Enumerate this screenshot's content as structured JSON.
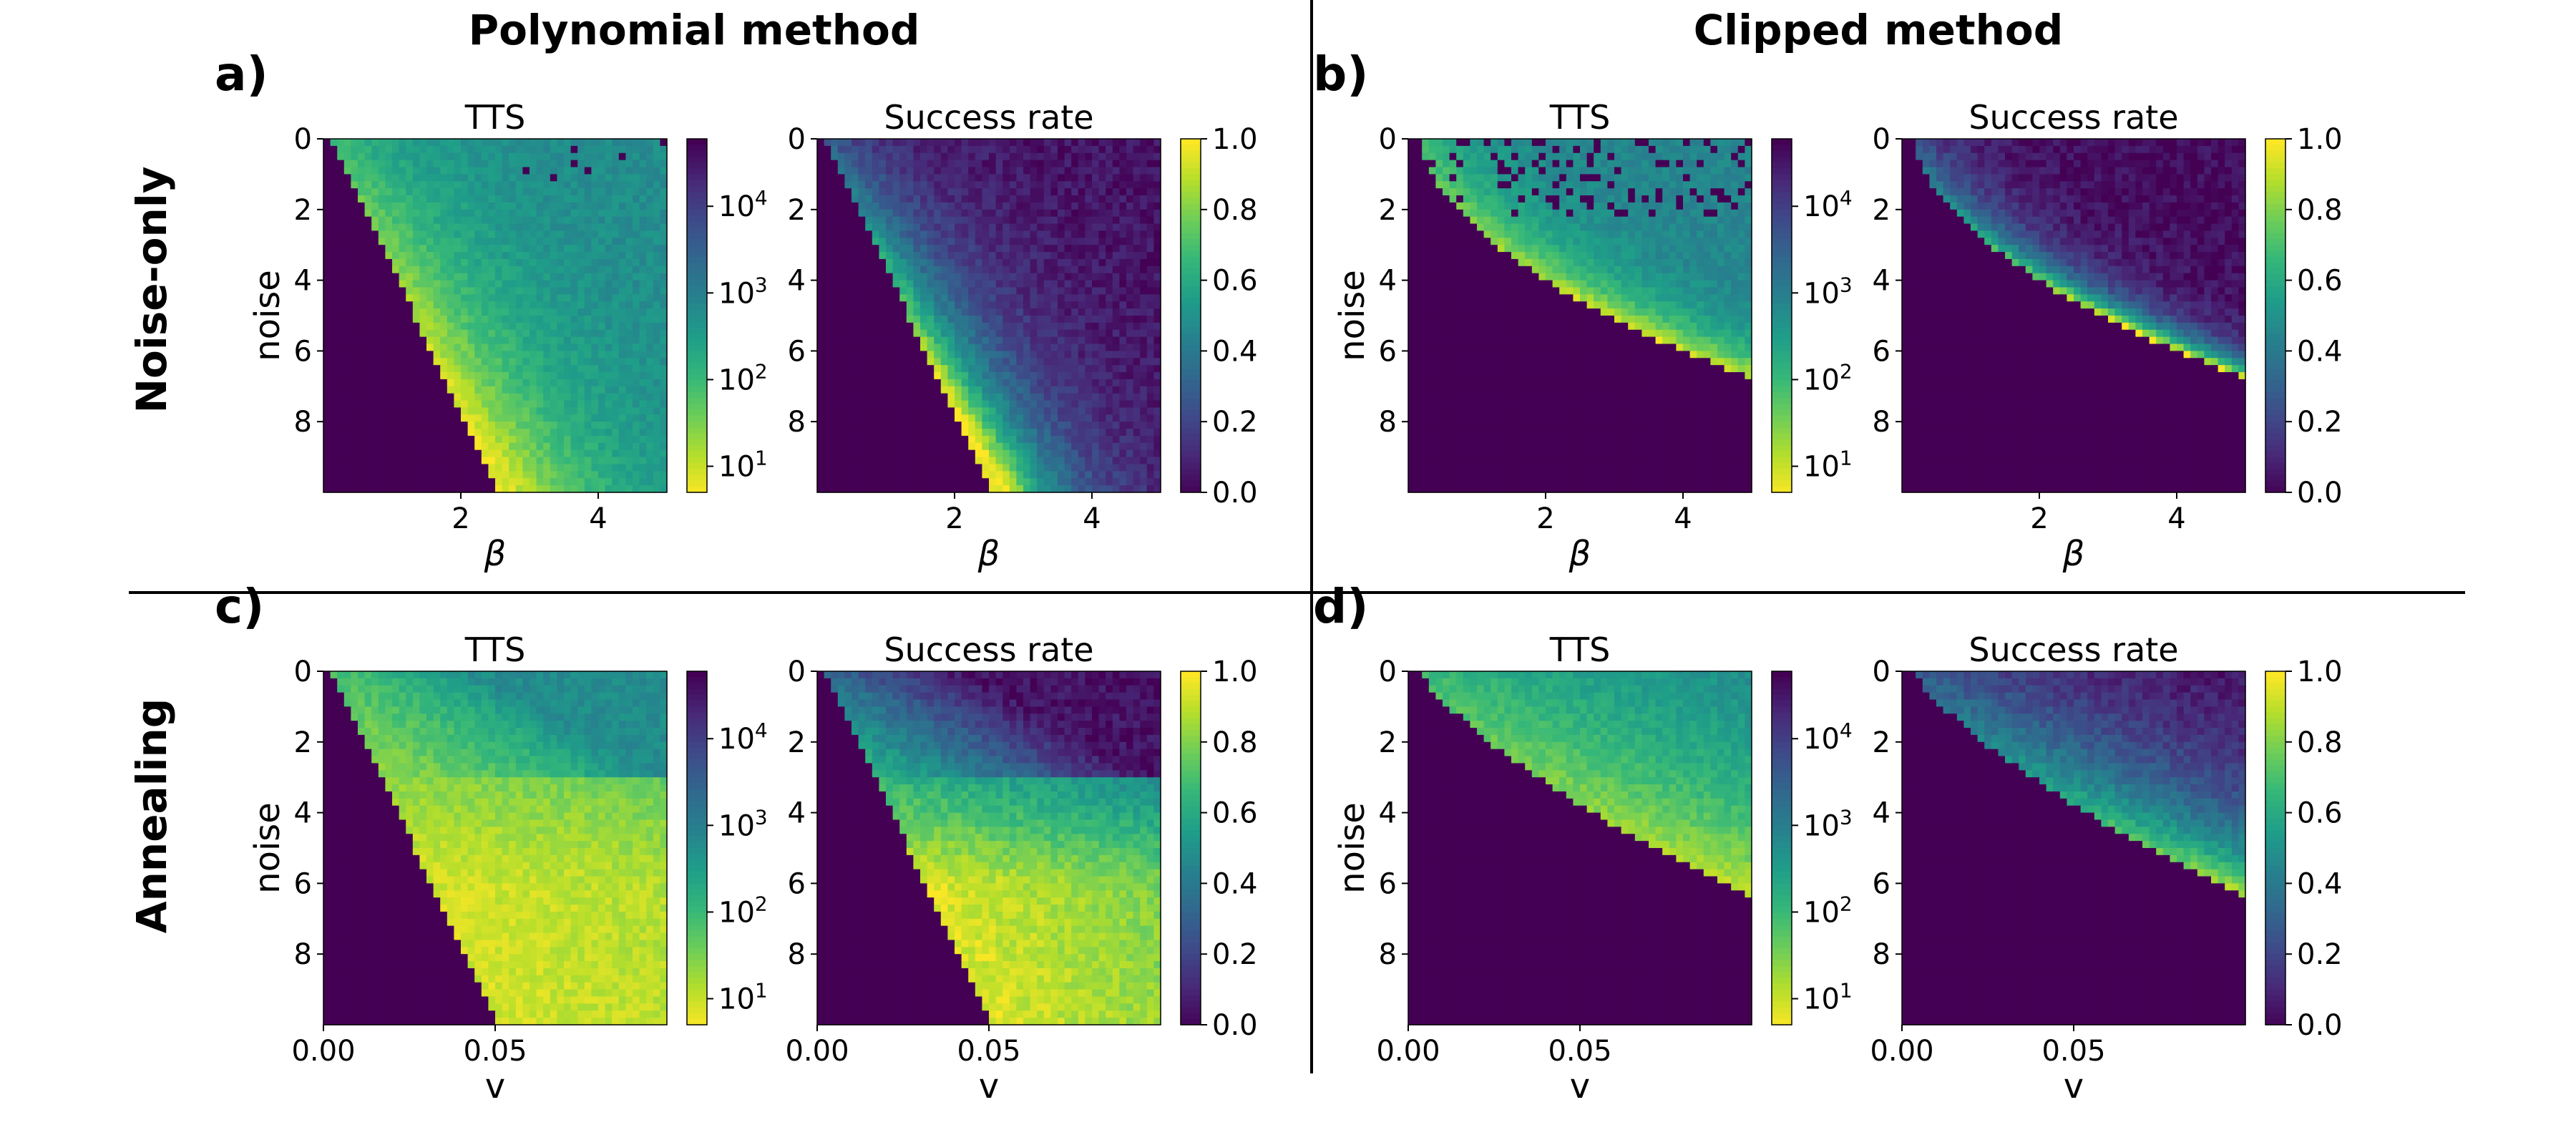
{
  "column_titles": [
    "Polynomial method",
    "Clipped method"
  ],
  "row_titles": [
    "Noise-only",
    "Annealing"
  ],
  "chart_data": [
    {
      "label": "a)",
      "type": "heatmap",
      "method": "polynomial",
      "regime": "noise-only",
      "xlabel": "β",
      "ylabel": "noise",
      "xlim": [
        0,
        5
      ],
      "ylim": [
        0,
        10
      ],
      "xticks": [
        "2",
        "4"
      ],
      "xtick_values": [
        2,
        4
      ],
      "yticks": [
        "0",
        "2",
        "4",
        "6",
        "8"
      ],
      "ytick_values": [
        0,
        2,
        4,
        6,
        8
      ],
      "panels": [
        {
          "title": "TTS",
          "metric": "tts",
          "colormap": "viridis_r",
          "scale": "log",
          "colorbar_ticks": [
            "10^4",
            "10^3",
            "10^2",
            "10^1"
          ],
          "colorbar_values": [
            10000,
            1000,
            100,
            10
          ],
          "crange": [
            5,
            60000
          ]
        },
        {
          "title": "Success rate",
          "metric": "success",
          "colormap": "viridis",
          "scale": "linear",
          "colorbar_ticks": [
            "1.0",
            "0.8",
            "0.6",
            "0.4",
            "0.2",
            "0.0"
          ],
          "colorbar_values": [
            1.0,
            0.8,
            0.6,
            0.4,
            0.2,
            0.0
          ],
          "crange": [
            0,
            1
          ]
        }
      ]
    },
    {
      "label": "b)",
      "type": "heatmap",
      "method": "clipped",
      "regime": "noise-only",
      "xlabel": "β",
      "ylabel": "noise",
      "xlim": [
        0,
        5
      ],
      "ylim": [
        0,
        10
      ],
      "xticks": [
        "2",
        "4"
      ],
      "xtick_values": [
        2,
        4
      ],
      "yticks": [
        "0",
        "2",
        "4",
        "6",
        "8"
      ],
      "ytick_values": [
        0,
        2,
        4,
        6,
        8
      ],
      "panels": [
        {
          "title": "TTS",
          "metric": "tts",
          "colormap": "viridis_r",
          "scale": "log",
          "colorbar_ticks": [
            "10^4",
            "10^3",
            "10^2",
            "10^1"
          ],
          "colorbar_values": [
            10000,
            1000,
            100,
            10
          ],
          "crange": [
            5,
            60000
          ]
        },
        {
          "title": "Success rate",
          "metric": "success",
          "colormap": "viridis",
          "scale": "linear",
          "colorbar_ticks": [
            "1.0",
            "0.8",
            "0.6",
            "0.4",
            "0.2",
            "0.0"
          ],
          "colorbar_values": [
            1.0,
            0.8,
            0.6,
            0.4,
            0.2,
            0.0
          ],
          "crange": [
            0,
            1
          ]
        }
      ]
    },
    {
      "label": "c)",
      "type": "heatmap",
      "method": "polynomial",
      "regime": "annealing",
      "xlabel": "v",
      "ylabel": "noise",
      "xlim": [
        0,
        0.1
      ],
      "ylim": [
        0,
        10
      ],
      "xticks": [
        "0.00",
        "0.05"
      ],
      "xtick_values": [
        0,
        0.05
      ],
      "yticks": [
        "0",
        "2",
        "4",
        "6",
        "8"
      ],
      "ytick_values": [
        0,
        2,
        4,
        6,
        8
      ],
      "panels": [
        {
          "title": "TTS",
          "metric": "tts",
          "colormap": "viridis_r",
          "scale": "log",
          "colorbar_ticks": [
            "10^4",
            "10^3",
            "10^2",
            "10^1"
          ],
          "colorbar_values": [
            10000,
            1000,
            100,
            10
          ],
          "crange": [
            5,
            60000
          ]
        },
        {
          "title": "Success rate",
          "metric": "success",
          "colormap": "viridis",
          "scale": "linear",
          "colorbar_ticks": [
            "1.0",
            "0.8",
            "0.6",
            "0.4",
            "0.2",
            "0.0"
          ],
          "colorbar_values": [
            1.0,
            0.8,
            0.6,
            0.4,
            0.2,
            0.0
          ],
          "crange": [
            0,
            1
          ]
        }
      ]
    },
    {
      "label": "d)",
      "type": "heatmap",
      "method": "clipped",
      "regime": "annealing",
      "xlabel": "v",
      "ylabel": "noise",
      "xlim": [
        0,
        0.1
      ],
      "ylim": [
        0,
        10
      ],
      "xticks": [
        "0.00",
        "0.05"
      ],
      "xtick_values": [
        0,
        0.05
      ],
      "yticks": [
        "0",
        "2",
        "4",
        "6",
        "8"
      ],
      "ytick_values": [
        0,
        2,
        4,
        6,
        8
      ],
      "panels": [
        {
          "title": "TTS",
          "metric": "tts",
          "colormap": "viridis_r",
          "scale": "log",
          "colorbar_ticks": [
            "10^4",
            "10^3",
            "10^2",
            "10^1"
          ],
          "colorbar_values": [
            10000,
            1000,
            100,
            10
          ],
          "crange": [
            5,
            60000
          ]
        },
        {
          "title": "Success rate",
          "metric": "success",
          "colormap": "viridis",
          "scale": "linear",
          "colorbar_ticks": [
            "1.0",
            "0.8",
            "0.6",
            "0.4",
            "0.2",
            "0.0"
          ],
          "colorbar_values": [
            1.0,
            0.8,
            0.6,
            0.4,
            0.2,
            0.0
          ],
          "crange": [
            0,
            1
          ]
        }
      ]
    }
  ]
}
